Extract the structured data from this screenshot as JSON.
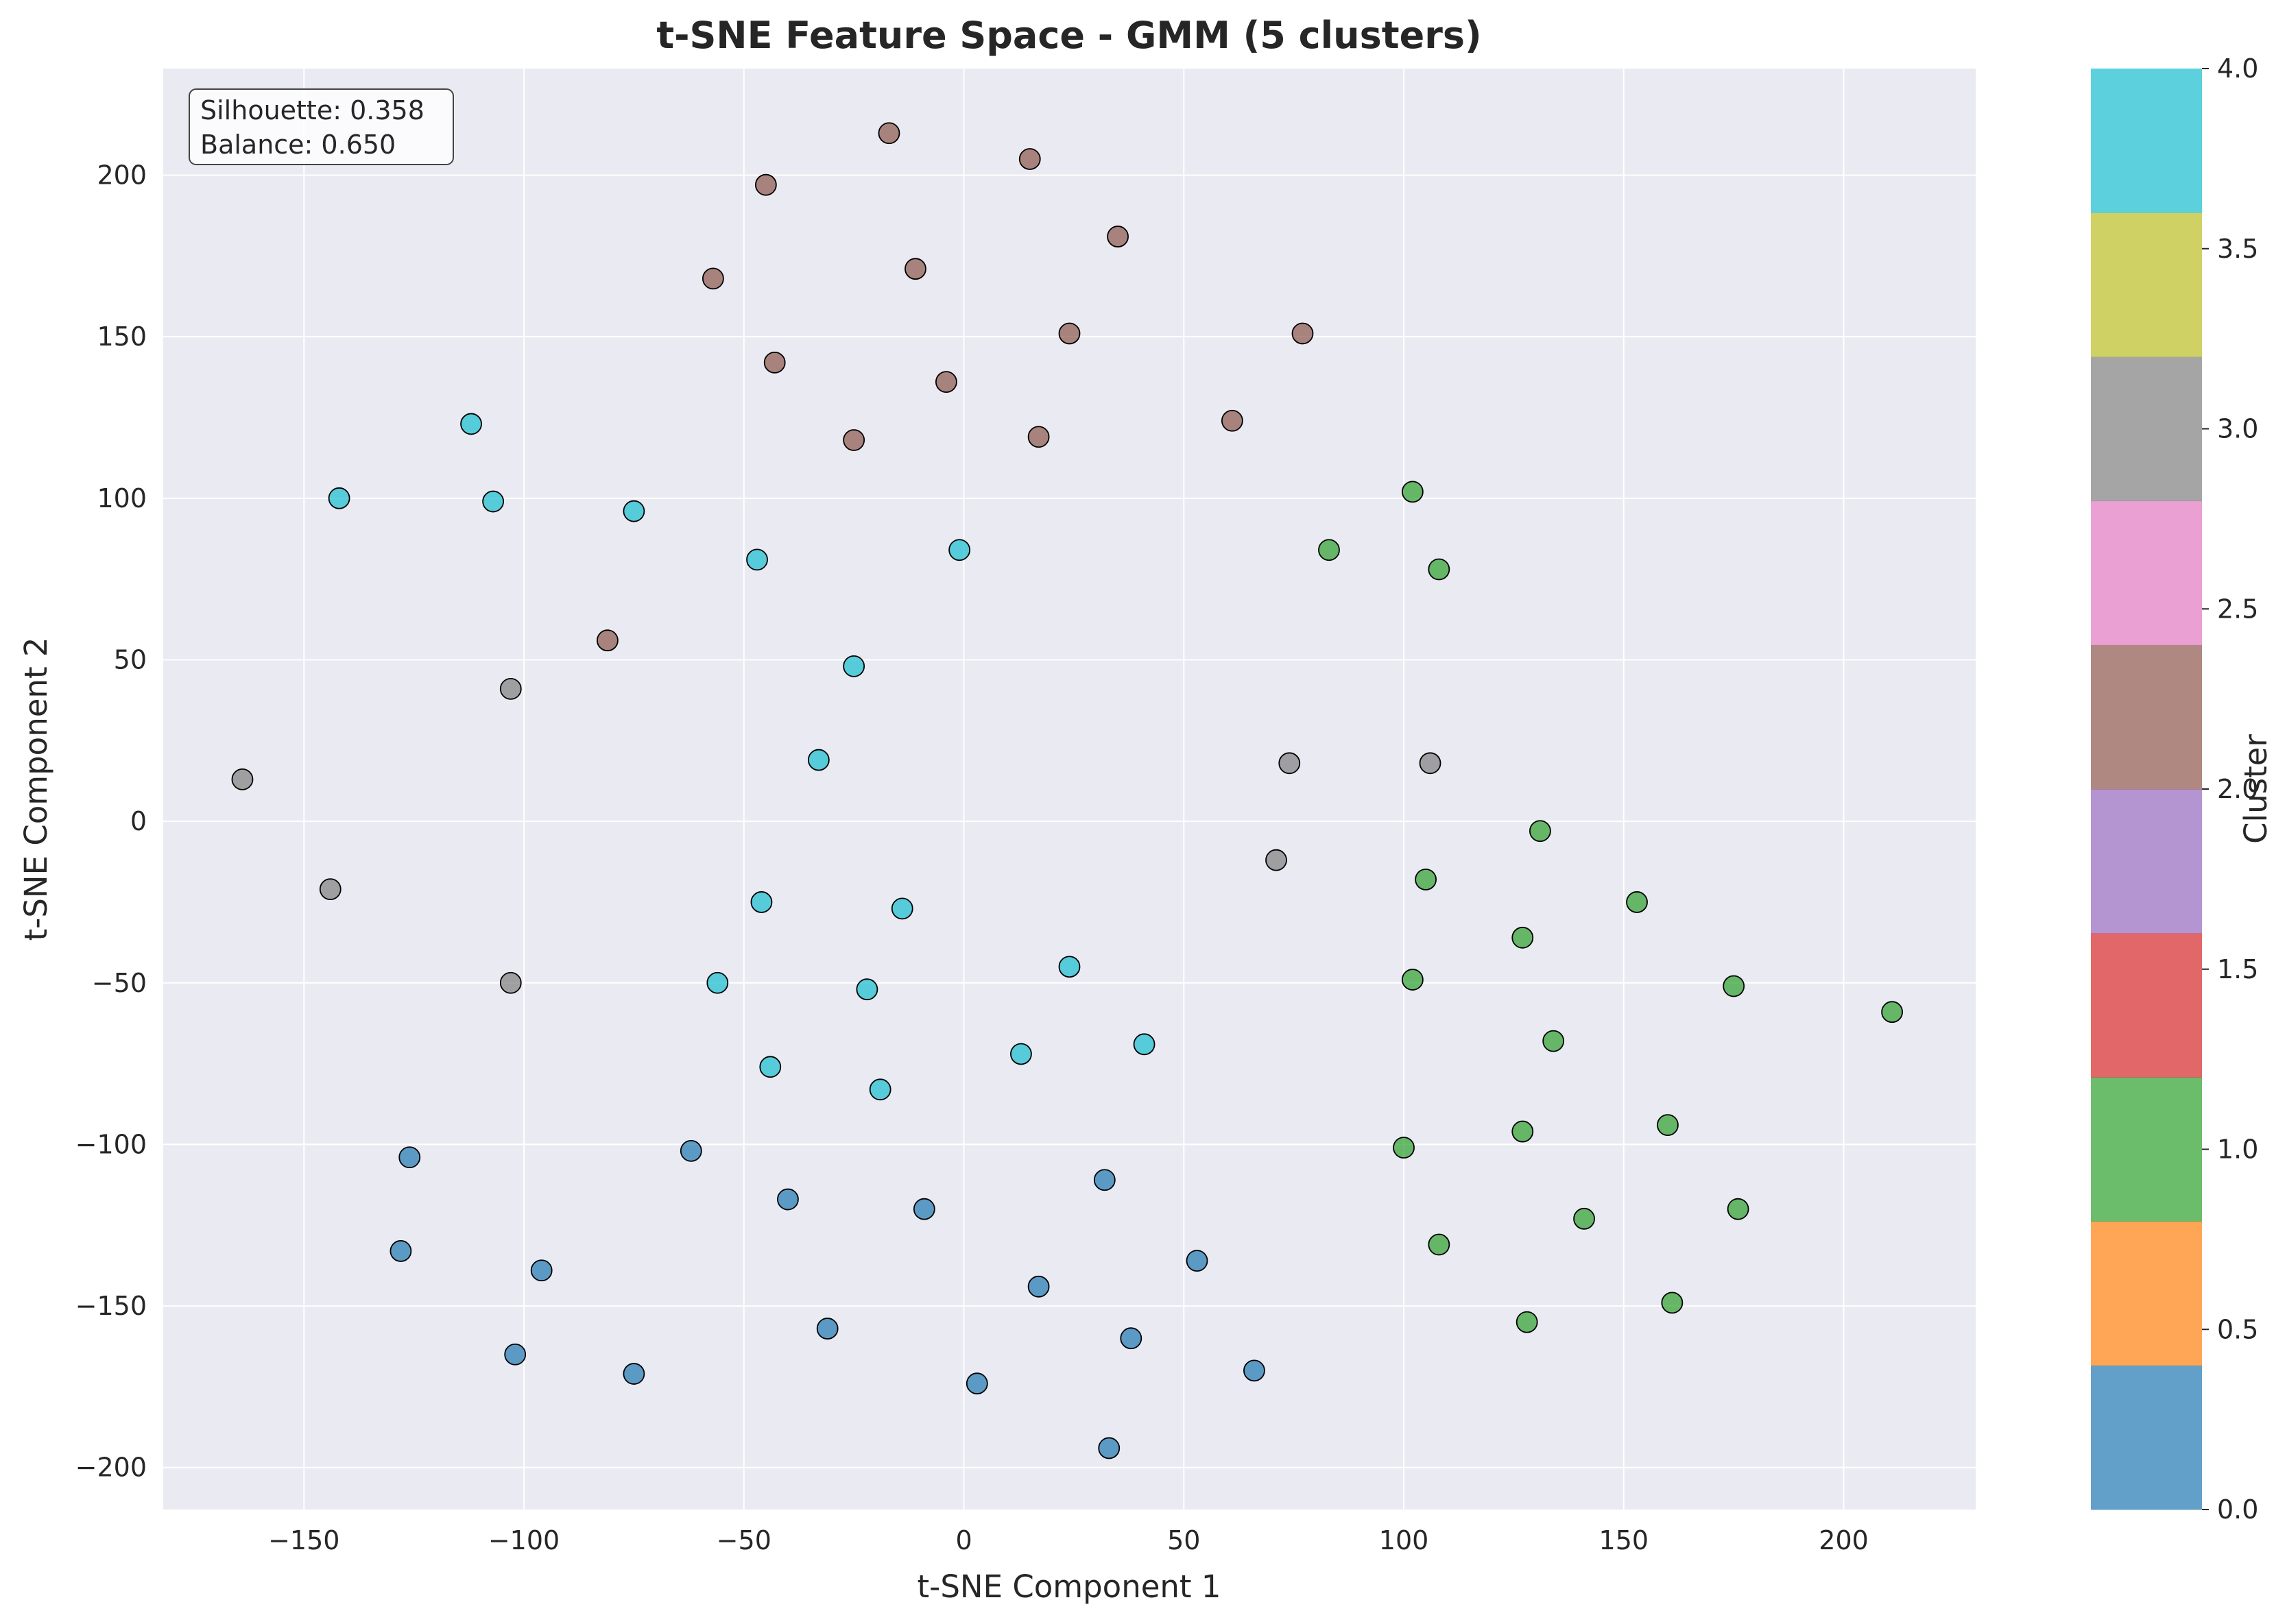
{
  "chart_data": {
    "type": "scatter",
    "title": "t-SNE Feature Space - GMM (5 clusters)",
    "xlabel": "t-SNE Component 1",
    "ylabel": "t-SNE Component 2",
    "xlim": [
      -182,
      230
    ],
    "ylim": [
      -213,
      233
    ],
    "xticks": [
      -150,
      -100,
      -50,
      0,
      50,
      100,
      150,
      200
    ],
    "xtick_labels": [
      "−150",
      "−100",
      "−50",
      "0",
      "50",
      "100",
      "150",
      "200"
    ],
    "yticks": [
      -200,
      -150,
      -100,
      -50,
      0,
      50,
      100,
      150,
      200
    ],
    "ytick_labels": [
      "−200",
      "−150",
      "−100",
      "−50",
      "0",
      "50",
      "100",
      "150",
      "200"
    ],
    "grid": true,
    "annotation": {
      "lines": [
        "Silhouette: 0.358",
        "Balance: 0.650"
      ],
      "placement": "top-left"
    },
    "colorbar": {
      "label": "Cluster",
      "range": [
        0,
        4
      ],
      "ticks": [
        0.0,
        0.5,
        1.0,
        1.5,
        2.0,
        2.5,
        3.0,
        3.5,
        4.0
      ],
      "tick_labels": [
        "0.0",
        "0.5",
        "1.0",
        "1.5",
        "2.0",
        "2.5",
        "3.0",
        "3.5",
        "4.0"
      ],
      "colors": [
        "#1f77b4",
        "#ff7f0e",
        "#2ca02c",
        "#d62728",
        "#9467bd",
        "#8c564b",
        "#e377c2",
        "#7f7f7f",
        "#bcbd22",
        "#17becf"
      ]
    },
    "cluster_colors": {
      "0": "#1f77b4",
      "1": "#2ca02c",
      "2": "#8c564b",
      "3": "#7f7f7f",
      "4": "#17becf"
    },
    "series": [
      {
        "cluster": 0,
        "points": [
          [
            -126,
            -104
          ],
          [
            -128,
            -133
          ],
          [
            -96,
            -139
          ],
          [
            -102,
            -165
          ],
          [
            -75,
            -171
          ],
          [
            -62,
            -102
          ],
          [
            -40,
            -117
          ],
          [
            -31,
            -157
          ],
          [
            -9,
            -120
          ],
          [
            17,
            -144
          ],
          [
            32,
            -111
          ],
          [
            3,
            -174
          ],
          [
            38,
            -160
          ],
          [
            53,
            -136
          ],
          [
            66,
            -170
          ],
          [
            33,
            -194
          ]
        ]
      },
      {
        "cluster": 1,
        "points": [
          [
            102,
            102
          ],
          [
            83,
            84
          ],
          [
            108,
            78
          ],
          [
            131,
            -3
          ],
          [
            105,
            -18
          ],
          [
            153,
            -25
          ],
          [
            127,
            -36
          ],
          [
            102,
            -49
          ],
          [
            175,
            -51
          ],
          [
            211,
            -59
          ],
          [
            134,
            -68
          ],
          [
            160,
            -94
          ],
          [
            127,
            -96
          ],
          [
            100,
            -101
          ],
          [
            141,
            -123
          ],
          [
            176,
            -120
          ],
          [
            108,
            -131
          ],
          [
            161,
            -149
          ],
          [
            128,
            -155
          ]
        ]
      },
      {
        "cluster": 2,
        "points": [
          [
            -17,
            213
          ],
          [
            15,
            205
          ],
          [
            -45,
            197
          ],
          [
            35,
            181
          ],
          [
            -11,
            171
          ],
          [
            -57,
            168
          ],
          [
            24,
            151
          ],
          [
            77,
            151
          ],
          [
            -43,
            142
          ],
          [
            -4,
            136
          ],
          [
            -25,
            118
          ],
          [
            17,
            119
          ],
          [
            61,
            124
          ],
          [
            -81,
            56
          ]
        ]
      },
      {
        "cluster": 3,
        "points": [
          [
            -103,
            41
          ],
          [
            -164,
            13
          ],
          [
            74,
            18
          ],
          [
            106,
            18
          ],
          [
            -144,
            -21
          ],
          [
            71,
            -12
          ],
          [
            -103,
            -50
          ]
        ]
      },
      {
        "cluster": 4,
        "points": [
          [
            -112,
            123
          ],
          [
            -142,
            100
          ],
          [
            -107,
            99
          ],
          [
            -75,
            96
          ],
          [
            -47,
            81
          ],
          [
            -1,
            84
          ],
          [
            -25,
            48
          ],
          [
            -33,
            19
          ],
          [
            -46,
            -25
          ],
          [
            -14,
            -27
          ],
          [
            24,
            -45
          ],
          [
            -56,
            -50
          ],
          [
            -22,
            -52
          ],
          [
            41,
            -69
          ],
          [
            13,
            -72
          ],
          [
            -44,
            -76
          ],
          [
            -19,
            -83
          ]
        ]
      }
    ]
  }
}
